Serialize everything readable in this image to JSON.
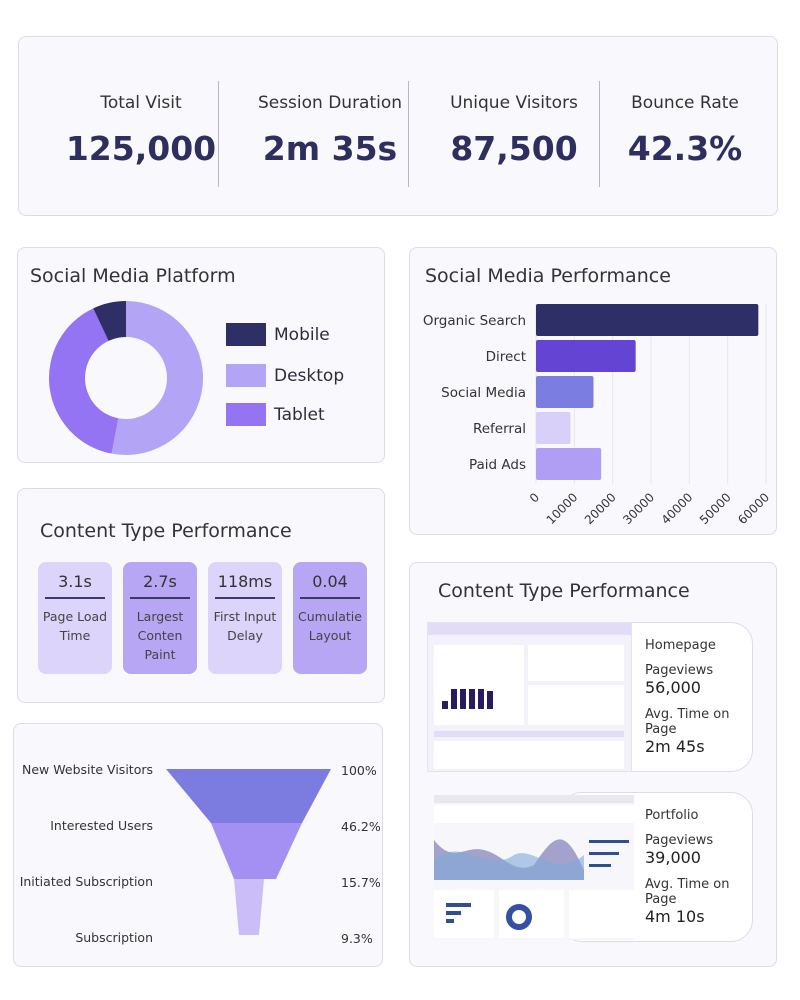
{
  "kpis": [
    {
      "label": "Total Visit",
      "value": "125,000"
    },
    {
      "label": "Session Duration",
      "value": "2m 35s"
    },
    {
      "label": "Unique Visitors",
      "value": "87,500"
    },
    {
      "label": "Bounce Rate",
      "value": "42.3%"
    }
  ],
  "platform": {
    "title": "Social Media Platform",
    "segments": [
      {
        "label": "Desktop",
        "share": 53,
        "color": "#b4a4f6"
      },
      {
        "label": "Tablet",
        "share": 40,
        "color": "#9474f2"
      },
      {
        "label": "Mobile",
        "share": 7,
        "color": "#2e2f66"
      }
    ],
    "legend": [
      {
        "label": "Mobile",
        "color": "#2e2f66"
      },
      {
        "label": "Desktop",
        "color": "#b4a4f6"
      },
      {
        "label": "Tablet",
        "color": "#9474f2"
      }
    ]
  },
  "chart_data": {
    "type": "bar",
    "orientation": "horizontal",
    "title": "Social Media Performance",
    "categories": [
      "Organic Search",
      "Direct",
      "Social Media",
      "Referral",
      "Paid Ads"
    ],
    "values": [
      58000,
      26000,
      15000,
      9000,
      17000
    ],
    "colors": [
      "#2e2f66",
      "#6444d2",
      "#7b7ee0",
      "#d8d0f8",
      "#b09ef4"
    ],
    "xlim": [
      0,
      60000
    ],
    "xticks": [
      "0",
      "10000",
      "20000",
      "30000",
      "40000",
      "50000",
      "60000"
    ],
    "grid": true
  },
  "content_metrics": {
    "title": "Content Type Performance",
    "items": [
      {
        "value": "3.1s",
        "label": "Page Load Time",
        "color": "#dcd4fa"
      },
      {
        "value": "2.7s",
        "label": "Largest Conten Paint",
        "color": "#b6a6f4"
      },
      {
        "value": "118ms",
        "label": "First Input Delay",
        "color": "#dcd4fa"
      },
      {
        "value": "0.04",
        "label": "Cumulatie Layout",
        "color": "#b6a6f4"
      }
    ]
  },
  "funnel": [
    {
      "label": "New Website Visitors",
      "value": "100%"
    },
    {
      "label": "Interested Users",
      "value": "46.2%"
    },
    {
      "label": "Initiated Subscription",
      "value": "15.7%"
    },
    {
      "label": "Subscription",
      "value": "9.3%"
    }
  ],
  "pages": {
    "title": "Content Type Performance",
    "items": [
      {
        "name": "Homepage",
        "pv_label": "Pageviews",
        "pageviews": "56,000",
        "time_label": "Avg. Time on Page",
        "time": "2m 45s"
      },
      {
        "name": "Portfolio",
        "pv_label": "Pageviews",
        "pageviews": "39,000",
        "time_label": "Avg. Time on Page",
        "time": "4m 10s"
      }
    ]
  }
}
